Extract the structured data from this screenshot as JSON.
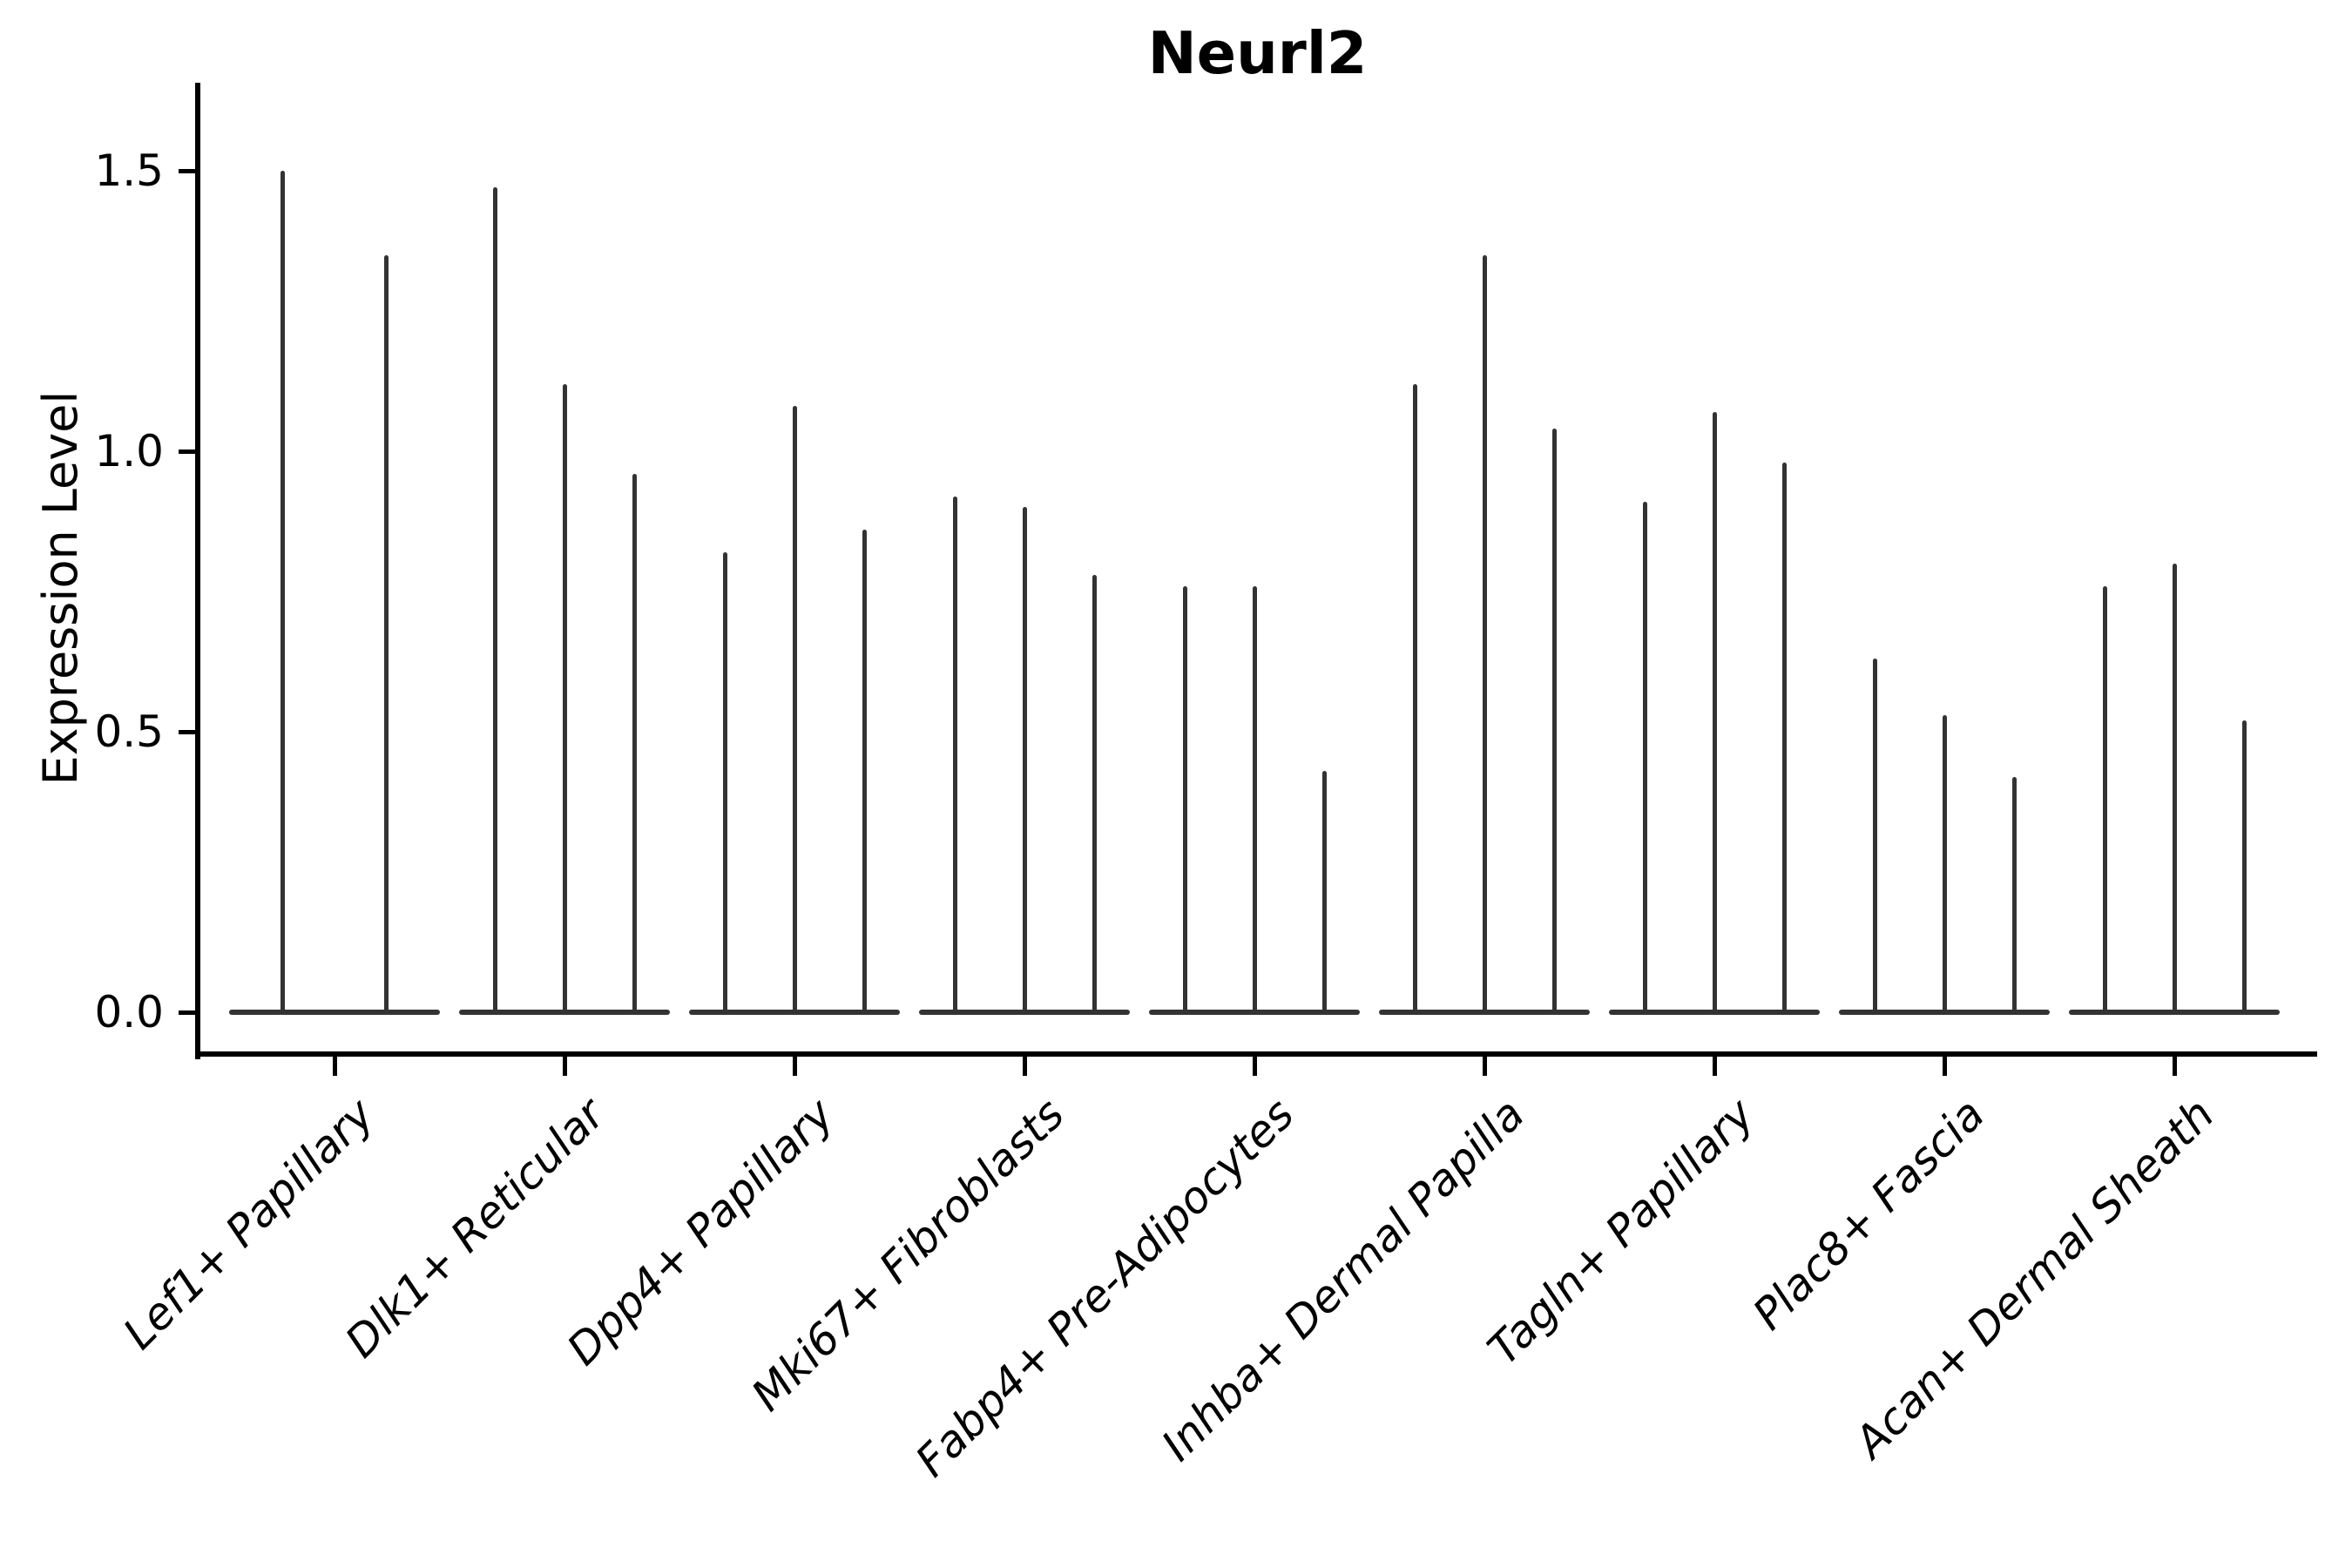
{
  "chart_data": {
    "type": "violin",
    "title": "Neurl2",
    "xlabel": "",
    "ylabel": "Expression Level",
    "ytick_labels": [
      "0.0",
      "0.5",
      "1.0",
      "1.5"
    ],
    "ytick_values": [
      0.0,
      0.5,
      1.0,
      1.5
    ],
    "ylim": [
      -0.07,
      1.66
    ],
    "grid": false,
    "legend_position": "none",
    "violin_color": "#333333",
    "axis_color": "#000000",
    "categories": [
      "Lef1+ Papillary",
      "Dlk1+ Reticular",
      "Dpp4+ Papillary",
      "Mki67+ Fibroblasts",
      "Fabp4+ Pre-Adipocytes",
      "Inhba+ Dermal Papilla",
      "Tagln+ Papillary",
      "Plac8+ Fascia",
      "Acan+ Dermal Sheath"
    ],
    "groups": [
      {
        "category": "Lef1+ Papillary",
        "violin_max_values": [
          1.5,
          1.35
        ]
      },
      {
        "category": "Dlk1+ Reticular",
        "violin_max_values": [
          1.47,
          1.12,
          0.96
        ]
      },
      {
        "category": "Dpp4+ Papillary",
        "violin_max_values": [
          0.82,
          1.08,
          0.86
        ]
      },
      {
        "category": "Mki67+ Fibroblasts",
        "violin_max_values": [
          0.92,
          0.9,
          0.78
        ]
      },
      {
        "category": "Fabp4+ Pre-Adipocytes",
        "violin_max_values": [
          0.76,
          0.76,
          0.43
        ]
      },
      {
        "category": "Inhba+ Dermal Papilla",
        "violin_max_values": [
          1.12,
          1.35,
          1.04
        ]
      },
      {
        "category": "Tagln+ Papillary",
        "violin_max_values": [
          0.91,
          1.07,
          0.98
        ]
      },
      {
        "category": "Plac8+ Fascia",
        "violin_max_values": [
          0.63,
          0.53,
          0.42
        ]
      },
      {
        "category": "Acan+ Dermal Sheath",
        "violin_max_values": [
          0.76,
          0.8,
          0.52
        ]
      }
    ]
  }
}
